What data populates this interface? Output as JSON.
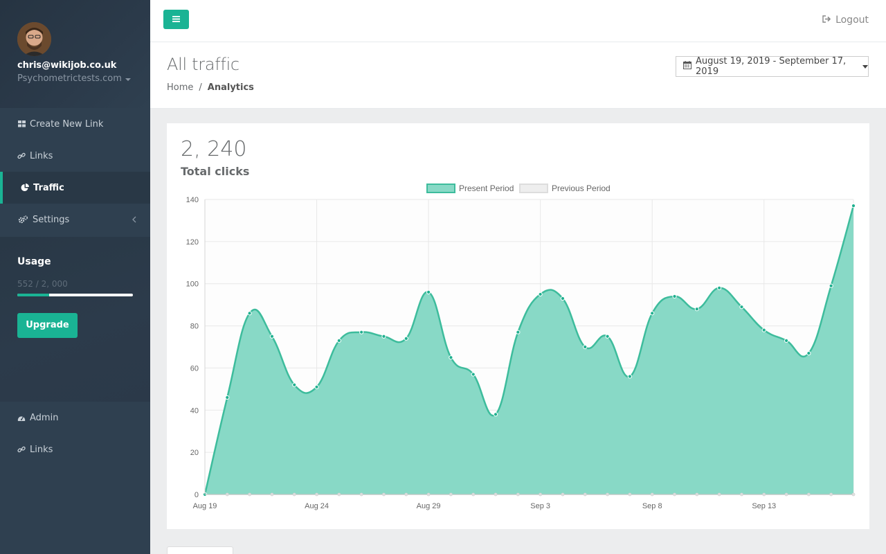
{
  "user": {
    "email": "chris@wikijob.co.uk",
    "site": "Psychometrictests.com"
  },
  "nav": {
    "items": [
      {
        "label": "Create New Link",
        "icon": "grid-icon"
      },
      {
        "label": "Links",
        "icon": "link-icon"
      },
      {
        "label": "Traffic",
        "icon": "pie-chart-icon",
        "active": true
      },
      {
        "label": "Settings",
        "icon": "cogs-icon"
      }
    ],
    "admin_items": [
      {
        "label": "Admin",
        "icon": "dashboard-icon"
      },
      {
        "label": "Links",
        "icon": "link-icon"
      }
    ]
  },
  "usage": {
    "title": "Usage",
    "count_text": "552 / 2, 000",
    "fraction": 0.276,
    "upgrade_label": "Upgrade"
  },
  "topbar": {
    "logout_label": "Logout"
  },
  "page": {
    "title": "All traffic",
    "breadcrumb": {
      "home": "Home",
      "separator": "/",
      "current": "Analytics"
    },
    "date_range": "August 19, 2019 - September 17, 2019"
  },
  "stats": {
    "total_value": "2, 240",
    "total_label": "Total clicks"
  },
  "colors": {
    "accent": "#1ab394",
    "sidebar": "#2f4050",
    "present_fill": "#88d9c6",
    "present_line": "#3dbc9c",
    "previous_fill": "#eeeeee"
  },
  "chart_data": {
    "type": "area",
    "x_ticks": [
      "Aug 19",
      "Aug 24",
      "Aug 29",
      "Sep 3",
      "Sep 8",
      "Sep 13"
    ],
    "x": [
      "Aug 19",
      "Aug 20",
      "Aug 21",
      "Aug 22",
      "Aug 23",
      "Aug 24",
      "Aug 25",
      "Aug 26",
      "Aug 27",
      "Aug 28",
      "Aug 29",
      "Aug 30",
      "Aug 31",
      "Sep 1",
      "Sep 2",
      "Sep 3",
      "Sep 4",
      "Sep 5",
      "Sep 6",
      "Sep 7",
      "Sep 8",
      "Sep 9",
      "Sep 10",
      "Sep 11",
      "Sep 12",
      "Sep 13",
      "Sep 14",
      "Sep 15",
      "Sep 16",
      "Sep 17"
    ],
    "series": [
      {
        "name": "Present Period",
        "values": [
          0,
          46,
          86,
          75,
          52,
          51,
          73,
          77,
          75,
          74,
          96,
          65,
          57,
          38,
          77,
          95,
          93,
          70,
          75,
          56,
          86,
          94,
          88,
          98,
          89,
          78,
          73,
          67,
          99,
          137
        ]
      },
      {
        "name": "Previous Period",
        "values": [
          0,
          0,
          0,
          0,
          0,
          0,
          0,
          0,
          0,
          0,
          0,
          0,
          0,
          0,
          0,
          0,
          0,
          0,
          0,
          0,
          0,
          0,
          0,
          0,
          0,
          0,
          0,
          0,
          0,
          0
        ]
      }
    ],
    "ylim": [
      0,
      140
    ],
    "y_ticks": [
      0,
      20,
      40,
      60,
      80,
      100,
      120,
      140
    ],
    "grid": true,
    "legend": "top-center"
  }
}
